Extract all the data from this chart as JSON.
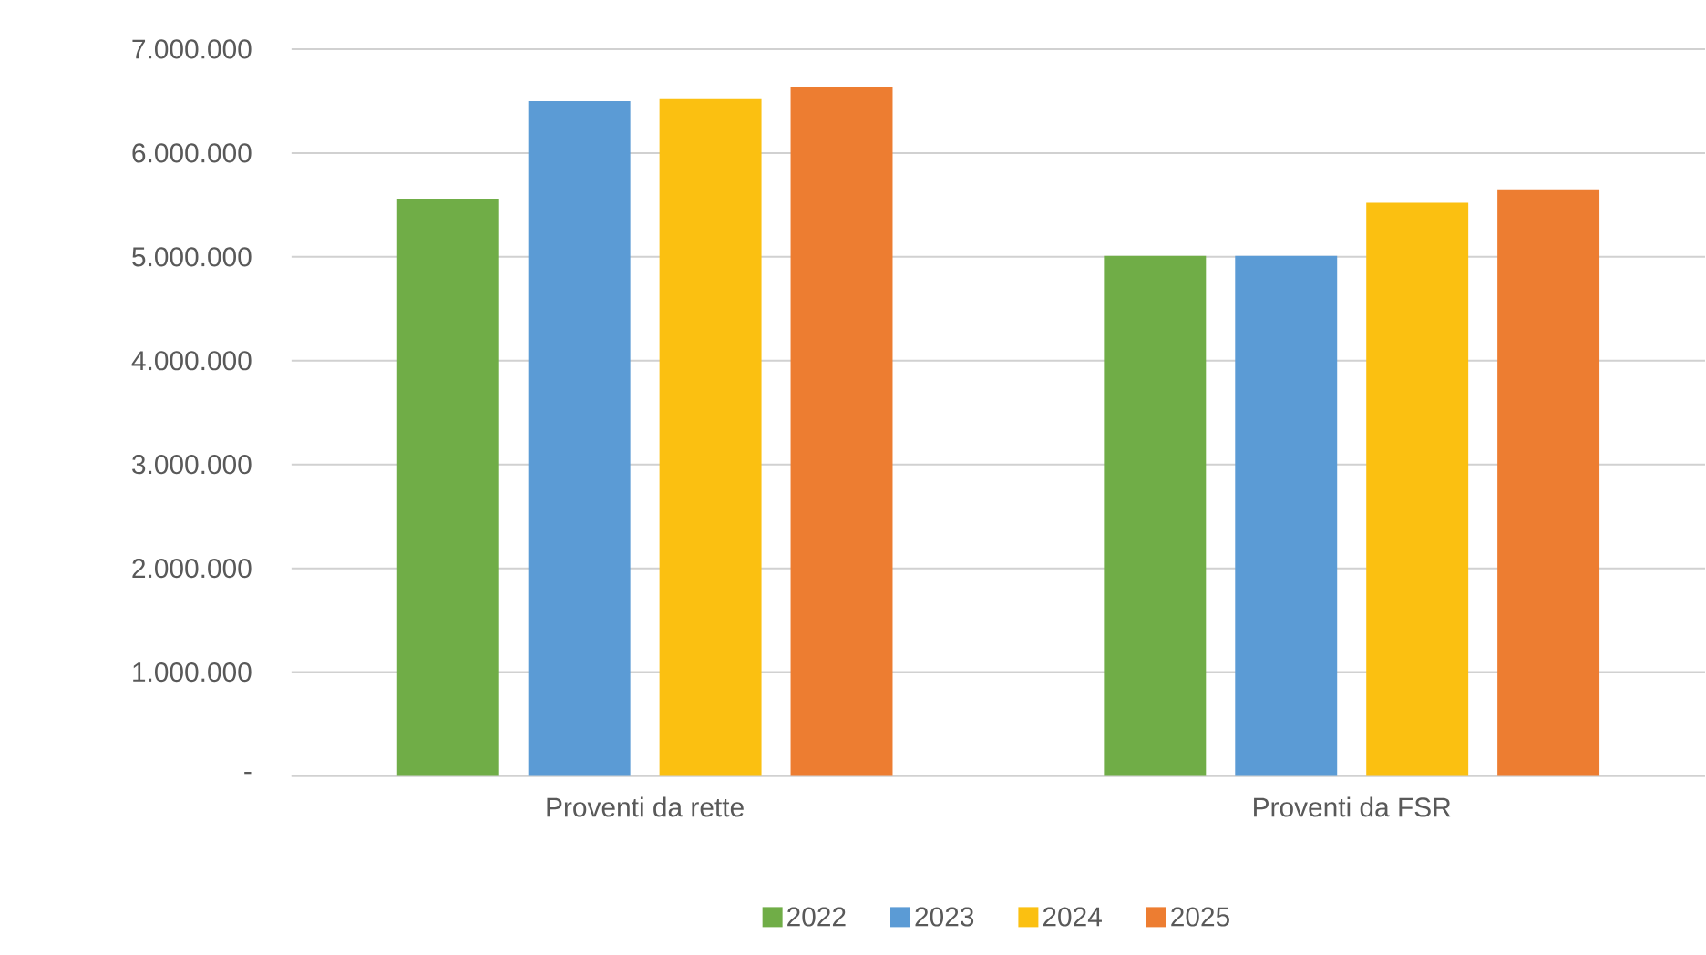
{
  "chart_data": {
    "type": "bar",
    "categories": [
      "Proventi da rette",
      "Proventi da FSR"
    ],
    "series": [
      {
        "name": "2022",
        "color": "#70ad47",
        "values": [
          5560000,
          5010000
        ]
      },
      {
        "name": "2023",
        "color": "#5b9bd5",
        "values": [
          6500000,
          5010000
        ]
      },
      {
        "name": "2024",
        "color": "#fbc011",
        "values": [
          6520000,
          5520000
        ]
      },
      {
        "name": "2025",
        "color": "#ed7d31",
        "values": [
          6640000,
          5650000
        ]
      }
    ],
    "ylim": [
      0,
      7000000
    ],
    "yticks": [
      {
        "value": 0,
        "label": "-"
      },
      {
        "value": 1000000,
        "label": "1.000.000"
      },
      {
        "value": 2000000,
        "label": "2.000.000"
      },
      {
        "value": 3000000,
        "label": "3.000.000"
      },
      {
        "value": 4000000,
        "label": "4.000.000"
      },
      {
        "value": 5000000,
        "label": "5.000.000"
      },
      {
        "value": 6000000,
        "label": "6.000.000"
      },
      {
        "value": 7000000,
        "label": "7.000.000"
      }
    ],
    "grid": "y",
    "legend": "bottom"
  }
}
